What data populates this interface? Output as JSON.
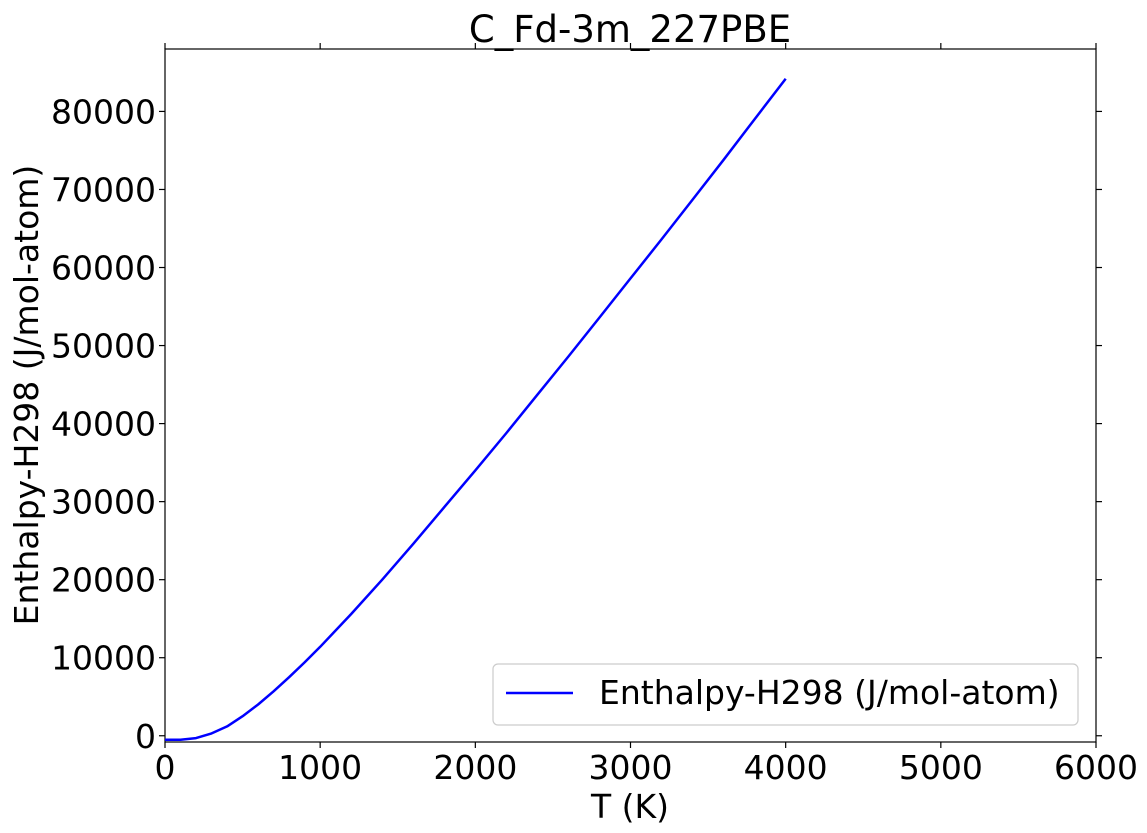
{
  "chart_data": {
    "type": "line",
    "title": "C_Fd-3m_227PBE",
    "xlabel": "T (K)",
    "ylabel": "Enthalpy-H298 (J/mol-atom)",
    "xlim": [
      0,
      6000
    ],
    "ylim": [
      -800,
      88000
    ],
    "xticks": [
      0,
      1000,
      2000,
      3000,
      4000,
      5000,
      6000
    ],
    "yticks": [
      0,
      10000,
      20000,
      30000,
      40000,
      50000,
      60000,
      70000,
      80000
    ],
    "grid": false,
    "legend_position": "bottom-right",
    "series": [
      {
        "name": "Enthalpy-H298 (J/mol-atom)",
        "color": "#0000ff",
        "x": [
          0,
          100,
          200,
          300,
          400,
          500,
          600,
          700,
          800,
          900,
          1000,
          1200,
          1400,
          1600,
          1800,
          2000,
          2200,
          2400,
          2600,
          2800,
          3000,
          3200,
          3400,
          3600,
          3800,
          4000
        ],
        "y": [
          -500,
          -500,
          -300,
          300,
          1200,
          2500,
          4000,
          5700,
          7500,
          9400,
          11400,
          15600,
          20000,
          24600,
          29300,
          34000,
          38800,
          43700,
          48600,
          53600,
          58600,
          63600,
          68700,
          73800,
          79000,
          84200
        ]
      }
    ]
  }
}
